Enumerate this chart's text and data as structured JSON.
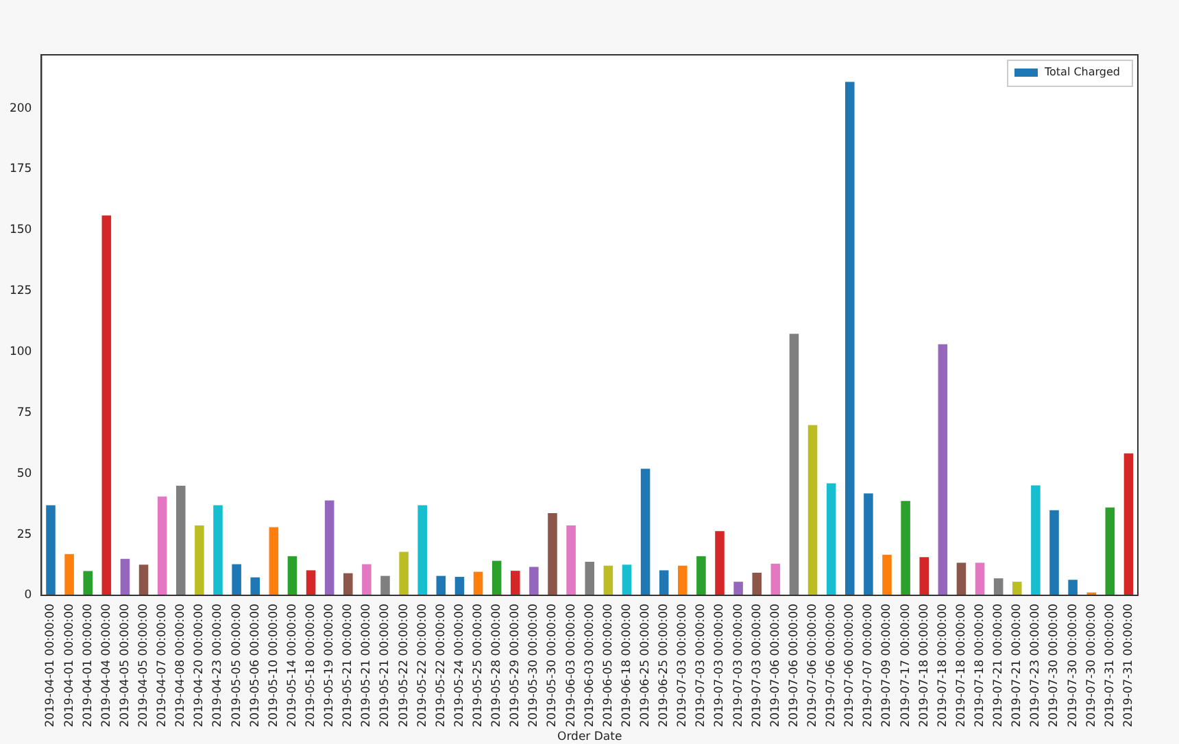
{
  "chart_data": {
    "type": "bar",
    "xlabel": "Order Date",
    "categories": [
      "2019-04-01 00:00:00",
      "2019-04-01 00:00:00",
      "2019-04-01 00:00:00",
      "2019-04-04 00:00:00",
      "2019-04-05 00:00:00",
      "2019-04-05 00:00:00",
      "2019-04-07 00:00:00",
      "2019-04-08 00:00:00",
      "2019-04-20 00:00:00",
      "2019-04-23 00:00:00",
      "2019-05-05 00:00:00",
      "2019-05-06 00:00:00",
      "2019-05-10 00:00:00",
      "2019-05-14 00:00:00",
      "2019-05-18 00:00:00",
      "2019-05-19 00:00:00",
      "2019-05-21 00:00:00",
      "2019-05-21 00:00:00",
      "2019-05-21 00:00:00",
      "2019-05-22 00:00:00",
      "2019-05-22 00:00:00",
      "2019-05-22 00:00:00",
      "2019-05-24 00:00:00",
      "2019-05-25 00:00:00",
      "2019-05-28 00:00:00",
      "2019-05-29 00:00:00",
      "2019-05-30 00:00:00",
      "2019-05-30 00:00:00",
      "2019-06-03 00:00:00",
      "2019-06-03 00:00:00",
      "2019-06-05 00:00:00",
      "2019-06-18 00:00:00",
      "2019-06-25 00:00:00",
      "2019-06-25 00:00:00",
      "2019-07-03 00:00:00",
      "2019-07-03 00:00:00",
      "2019-07-03 00:00:00",
      "2019-07-03 00:00:00",
      "2019-07-03 00:00:00",
      "2019-07-06 00:00:00",
      "2019-07-06 00:00:00",
      "2019-07-06 00:00:00",
      "2019-07-06 00:00:00",
      "2019-07-06 00:00:00",
      "2019-07-07 00:00:00",
      "2019-07-09 00:00:00",
      "2019-07-17 00:00:00",
      "2019-07-18 00:00:00",
      "2019-07-18 00:00:00",
      "2019-07-18 00:00:00",
      "2019-07-18 00:00:00",
      "2019-07-21 00:00:00",
      "2019-07-21 00:00:00",
      "2019-07-23 00:00:00",
      "2019-07-30 00:00:00",
      "2019-07-30 00:00:00",
      "2019-07-30 00:00:00",
      "2019-07-31 00:00:00",
      "2019-07-31 00:00:00"
    ],
    "series": [
      {
        "name": "Total Charged",
        "color": "#1f77b4",
        "values": [
          37,
          17,
          10,
          156,
          15,
          12.6,
          40.6,
          45,
          28.7,
          37,
          12.8,
          7.4,
          28,
          16.1,
          10.3,
          39,
          9.1,
          12.8,
          8,
          17.9,
          37,
          8,
          7.6,
          9.7,
          14.2,
          10.1,
          11.7,
          33.8,
          28.7,
          13.8,
          12.2,
          12.6,
          52,
          10.3,
          12.2,
          16.1,
          26.4,
          5.6,
          9.3,
          13,
          107.4,
          69.9,
          46,
          210.9,
          41.9,
          16.7,
          38.8,
          15.7,
          103.1,
          13.4,
          13.4,
          7,
          5.6,
          45.2,
          35,
          6.4,
          1.2,
          36.1,
          58.3
        ],
        "colors": [
          "#1f77b4",
          "#ff7f0e",
          "#2ca02c",
          "#d62728",
          "#9467bd",
          "#8c564b",
          "#e377c2",
          "#7f7f7f",
          "#bcbd22",
          "#17becf",
          "#1f77b4",
          "#1f77b4",
          "#ff7f0e",
          "#2ca02c",
          "#d62728",
          "#9467bd",
          "#8c564b",
          "#e377c2",
          "#7f7f7f",
          "#bcbd22",
          "#17becf",
          "#1f77b4",
          "#1f77b4",
          "#ff7f0e",
          "#2ca02c",
          "#d62728",
          "#9467bd",
          "#8c564b",
          "#e377c2",
          "#7f7f7f",
          "#bcbd22",
          "#17becf",
          "#1f77b4",
          "#1f77b4",
          "#ff7f0e",
          "#2ca02c",
          "#d62728",
          "#9467bd",
          "#8c564b",
          "#e377c2",
          "#7f7f7f",
          "#bcbd22",
          "#17becf",
          "#1f77b4",
          "#1f77b4",
          "#ff7f0e",
          "#2ca02c",
          "#d62728",
          "#9467bd",
          "#8c564b",
          "#e377c2",
          "#7f7f7f",
          "#bcbd22",
          "#17becf",
          "#1f77b4",
          "#1f77b4",
          "#ff7f0e",
          "#2ca02c",
          "#d62728"
        ]
      }
    ],
    "ylim": [
      0,
      222
    ],
    "yticks": [
      0,
      25,
      50,
      75,
      100,
      125,
      150,
      175,
      200
    ],
    "grid": false,
    "legend": "top right"
  }
}
